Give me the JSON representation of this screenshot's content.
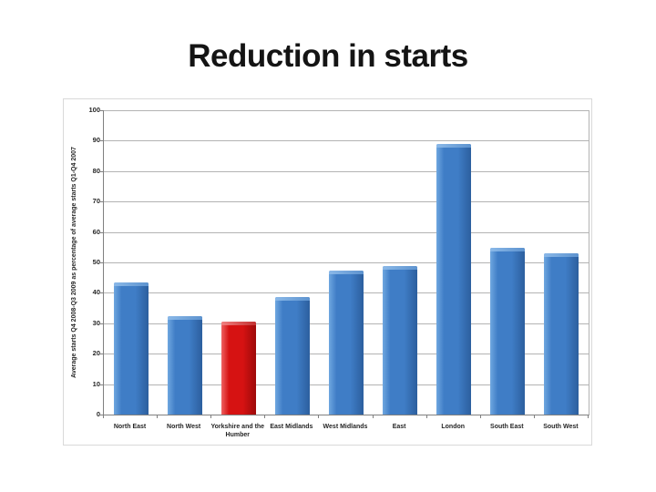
{
  "slide": {
    "title": "Reduction in starts",
    "background_color": "#ffffff"
  },
  "chart_data": {
    "type": "bar",
    "title": "",
    "categories": [
      "North East",
      "North West",
      "Yorkshire and the Humber",
      "East Midlands",
      "West Midlands",
      "East",
      "London",
      "South East",
      "South West"
    ],
    "values": [
      43.3,
      32.2,
      30.4,
      38.7,
      47.3,
      48.7,
      89,
      54.8,
      53
    ],
    "highlight_index": 2,
    "xlabel": "",
    "ylabel": "Average starts Q4 2008-Q3 2009 as percentage of average starts Q1-Q4 2007",
    "ylim": [
      0,
      100
    ],
    "ytick_step": 10,
    "ytick_labels": [
      "0",
      "10",
      "20",
      "30",
      "40",
      "50",
      "60",
      "70",
      "80",
      "90",
      "100"
    ],
    "grid": true,
    "legend": false,
    "colors": {
      "bar_blue": {
        "light": "#6fa7e0",
        "mid": "#3f7dc6",
        "dark": "#2c5f9e",
        "bevel_light": "#8ab8e8",
        "bevel_dark": "#5d93cf"
      },
      "bar_red": {
        "light": "#ee6161",
        "mid": "#d61212",
        "dark": "#9d0a0a",
        "bevel_light": "#f07f7f",
        "bevel_dark": "#c23030"
      },
      "gridline": "#b3b3b3",
      "axis": "#808080",
      "panel_border": "#d9d9d9",
      "label_text": "#262626",
      "title_text": "#141414"
    }
  }
}
